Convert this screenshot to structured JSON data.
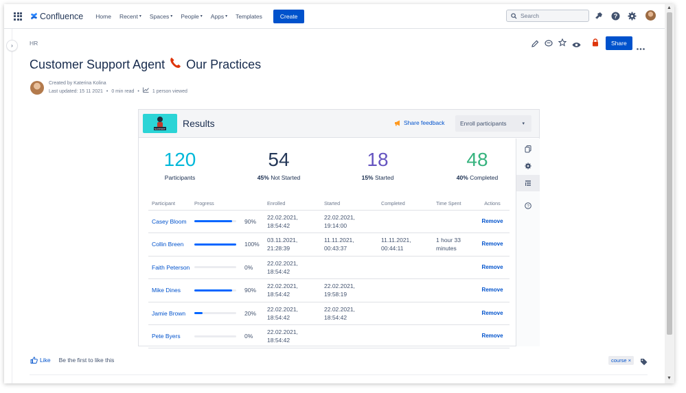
{
  "nav": {
    "product": "Confluence",
    "items": [
      "Home",
      "Recent",
      "Spaces",
      "People",
      "Apps",
      "Templates"
    ],
    "create": "Create",
    "search_placeholder": "Search"
  },
  "breadcrumb": "HR",
  "share": "Share",
  "page": {
    "title_left": "Customer Support Agent",
    "title_right": "Our Practices",
    "created_by": "Created by Katerina Kolina",
    "last_updated": "Last updated: 15 11 2021",
    "read_time": "0 min read",
    "viewed": "1 person viewed"
  },
  "results": {
    "title": "Results",
    "thumb_text": "SUPPORT",
    "share_feedback": "Share feedback",
    "enroll": "Enroll participants",
    "stats": [
      {
        "num": "120",
        "pct": "",
        "label": "Participants",
        "color": "#00b8d9"
      },
      {
        "num": "54",
        "pct": "45%",
        "label": "Not Started",
        "color": "#253858"
      },
      {
        "num": "18",
        "pct": "15%",
        "label": "Started",
        "color": "#6554c0"
      },
      {
        "num": "48",
        "pct": "40%",
        "label": "Completed",
        "color": "#36b37e"
      }
    ],
    "columns": [
      "Participant",
      "Progress",
      "Enrolled",
      "Started",
      "Completed",
      "Time Spent",
      "Actions"
    ],
    "rows": [
      {
        "name": "Casey Bloom",
        "progress": 0.9,
        "pct": "90%",
        "enrolled": "22.02.2021, 18:54:42",
        "started": "22.02.2021, 19:14:00",
        "completed": "",
        "time": "",
        "action": "Remove"
      },
      {
        "name": "Collin Breen",
        "progress": 1.0,
        "pct": "100%",
        "enrolled": "03.11.2021, 21:28:39",
        "started": "11.11.2021, 00:43:37",
        "completed": "11.11.2021, 00:44:11",
        "time": "1 hour 33 minutes",
        "action": "Remove"
      },
      {
        "name": "Faith Peterson",
        "progress": 0,
        "pct": "0%",
        "enrolled": "22.02.2021, 18:54:42",
        "started": "",
        "completed": "",
        "time": "",
        "action": "Remove"
      },
      {
        "name": "Mike Dines",
        "progress": 0.9,
        "pct": "90%",
        "enrolled": "22.02.2021, 18:54:42",
        "started": "22.02.2021, 19:58:19",
        "completed": "",
        "time": "",
        "action": "Remove"
      },
      {
        "name": "Jamie Brown",
        "progress": 0.2,
        "pct": "20%",
        "enrolled": "22.02.2021, 18:54:42",
        "started": "22.02.2021, 18:54:42",
        "completed": "",
        "time": "",
        "action": "Remove"
      },
      {
        "name": "Pete Byers",
        "progress": 0,
        "pct": "0%",
        "enrolled": "22.02.2021, 18:54:42",
        "started": "",
        "completed": "",
        "time": "",
        "action": "Remove"
      }
    ]
  },
  "footer": {
    "like": "Like",
    "like_text": "Be the first to like this",
    "label": "course ×"
  }
}
